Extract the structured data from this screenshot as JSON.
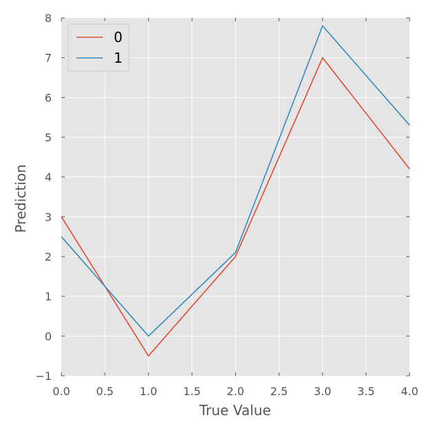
{
  "chart_data": {
    "type": "line",
    "title": "",
    "xlabel": "True Value",
    "ylabel": "Prediction",
    "xlim": [
      0.0,
      4.0
    ],
    "ylim": [
      -1,
      8
    ],
    "xticks": [
      "0.0",
      "0.5",
      "1.0",
      "1.5",
      "2.0",
      "2.5",
      "3.0",
      "3.5",
      "4.0"
    ],
    "yticks": [
      "−1",
      "0",
      "1",
      "2",
      "3",
      "4",
      "5",
      "6",
      "7",
      "8"
    ],
    "grid": true,
    "legend_position": "top-left",
    "series": [
      {
        "name": "0",
        "color": "#E24A33",
        "x": [
          0,
          1,
          2,
          3,
          4
        ],
        "y": [
          3.0,
          -0.5,
          2.0,
          7.0,
          4.2
        ]
      },
      {
        "name": "1",
        "color": "#348ABD",
        "x": [
          0,
          1,
          2,
          3,
          4
        ],
        "y": [
          2.5,
          0.0,
          2.1,
          7.8,
          5.3
        ]
      }
    ]
  }
}
